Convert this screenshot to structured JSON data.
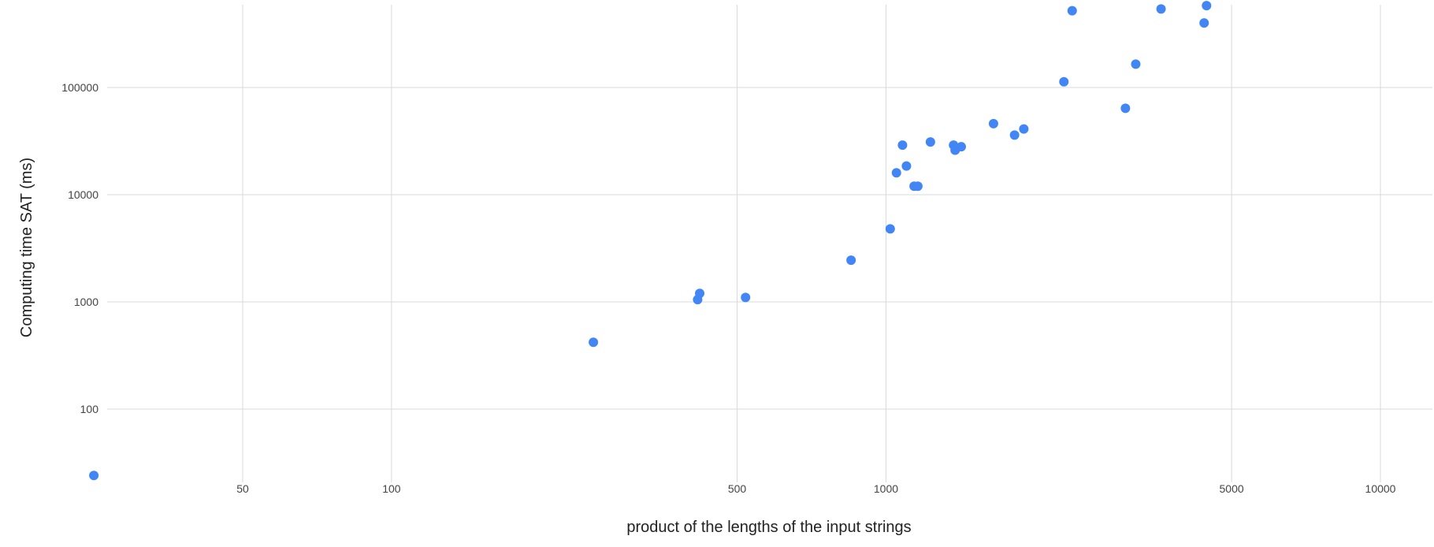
{
  "chart_data": {
    "type": "scatter",
    "title": "",
    "xlabel": "product of the lengths of the input strings",
    "ylabel": "Computing time SAT (ms)",
    "x_scale": "log",
    "y_scale": "log",
    "xlim": [
      22,
      12500
    ],
    "ylim": [
      24,
      600000
    ],
    "x_ticks": [
      50,
      100,
      500,
      1000,
      5000,
      10000
    ],
    "x_tick_labels": [
      "50",
      "100",
      "500",
      "1000",
      "5000",
      "10000"
    ],
    "y_ticks": [
      100,
      1000,
      10000,
      100000
    ],
    "y_tick_labels": [
      "100",
      "1000",
      "10000",
      "100000"
    ],
    "grid": true,
    "legend": "none",
    "series": [
      {
        "color": "#4285f4",
        "points": [
          {
            "x": 25,
            "y": 24
          },
          {
            "x": 256,
            "y": 420
          },
          {
            "x": 416,
            "y": 1050
          },
          {
            "x": 420,
            "y": 1200
          },
          {
            "x": 520,
            "y": 1100
          },
          {
            "x": 850,
            "y": 2450
          },
          {
            "x": 1020,
            "y": 4800
          },
          {
            "x": 1050,
            "y": 16000
          },
          {
            "x": 1080,
            "y": 29000
          },
          {
            "x": 1100,
            "y": 18500
          },
          {
            "x": 1140,
            "y": 12000
          },
          {
            "x": 1160,
            "y": 12000
          },
          {
            "x": 1230,
            "y": 31000
          },
          {
            "x": 1370,
            "y": 29000
          },
          {
            "x": 1380,
            "y": 26000
          },
          {
            "x": 1420,
            "y": 28000
          },
          {
            "x": 1650,
            "y": 46000
          },
          {
            "x": 1820,
            "y": 36000
          },
          {
            "x": 1900,
            "y": 41000
          },
          {
            "x": 2290,
            "y": 113000
          },
          {
            "x": 2380,
            "y": 520000
          },
          {
            "x": 3050,
            "y": 64000
          },
          {
            "x": 3200,
            "y": 165000
          },
          {
            "x": 3600,
            "y": 540000
          },
          {
            "x": 4400,
            "y": 400000
          },
          {
            "x": 4450,
            "y": 580000
          }
        ]
      }
    ]
  }
}
